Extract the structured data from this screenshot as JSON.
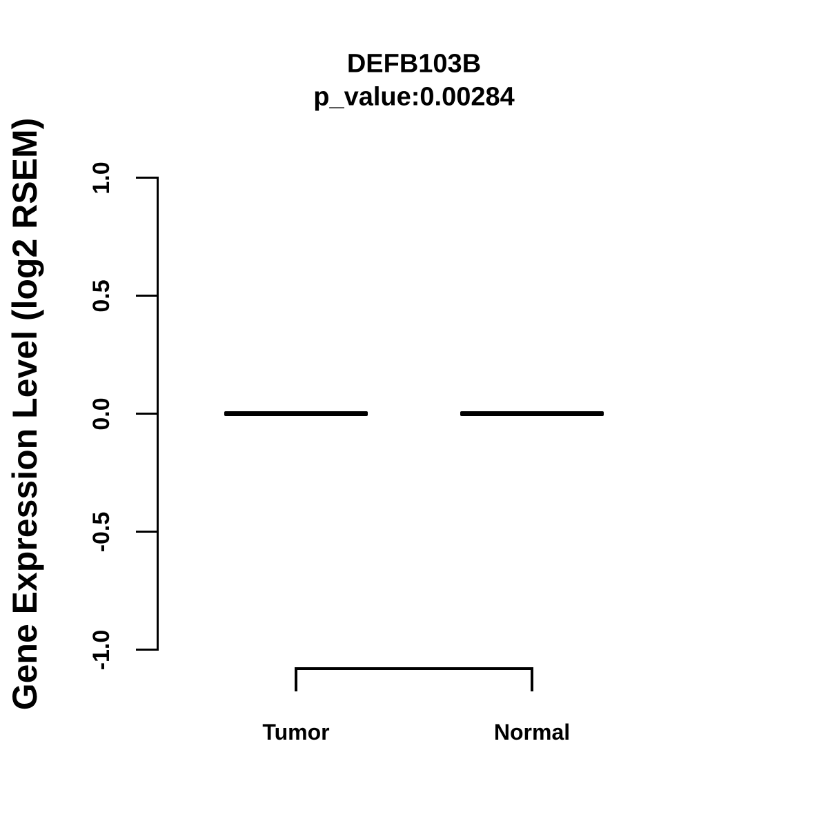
{
  "figure": {
    "background": "#ffffff",
    "ink_color": "#000000"
  },
  "chart_data": {
    "type": "boxplot",
    "title": "DEFB103B",
    "subtitle": "p_value:0.00284",
    "gene": "DEFB103B",
    "p_value": "0.00284",
    "ylabel": "Gene Expression Level (log2 RSEM)",
    "xlabel": "",
    "categories": [
      "Tumor",
      "Normal"
    ],
    "groups": [
      {
        "name": "Tumor",
        "median": 0.0,
        "q1": 0.0,
        "q3": 0.0,
        "whisker_low": 0.0,
        "whisker_high": 0.0
      },
      {
        "name": "Normal",
        "median": 0.0,
        "q1": 0.0,
        "q3": 0.0,
        "whisker_low": 0.0,
        "whisker_high": 0.0
      }
    ],
    "ylim": [
      -1.0,
      1.0
    ],
    "ytick_values": [
      1.0,
      0.5,
      0.0,
      -0.5,
      -1.0
    ],
    "ytick_labels": [
      "1.0",
      "0.5",
      "0.0",
      "-0.5",
      "-1.0"
    ],
    "grid": false,
    "legend": "none",
    "annotations": {
      "comparison_bracket_between": [
        "Tumor",
        "Normal"
      ]
    }
  }
}
